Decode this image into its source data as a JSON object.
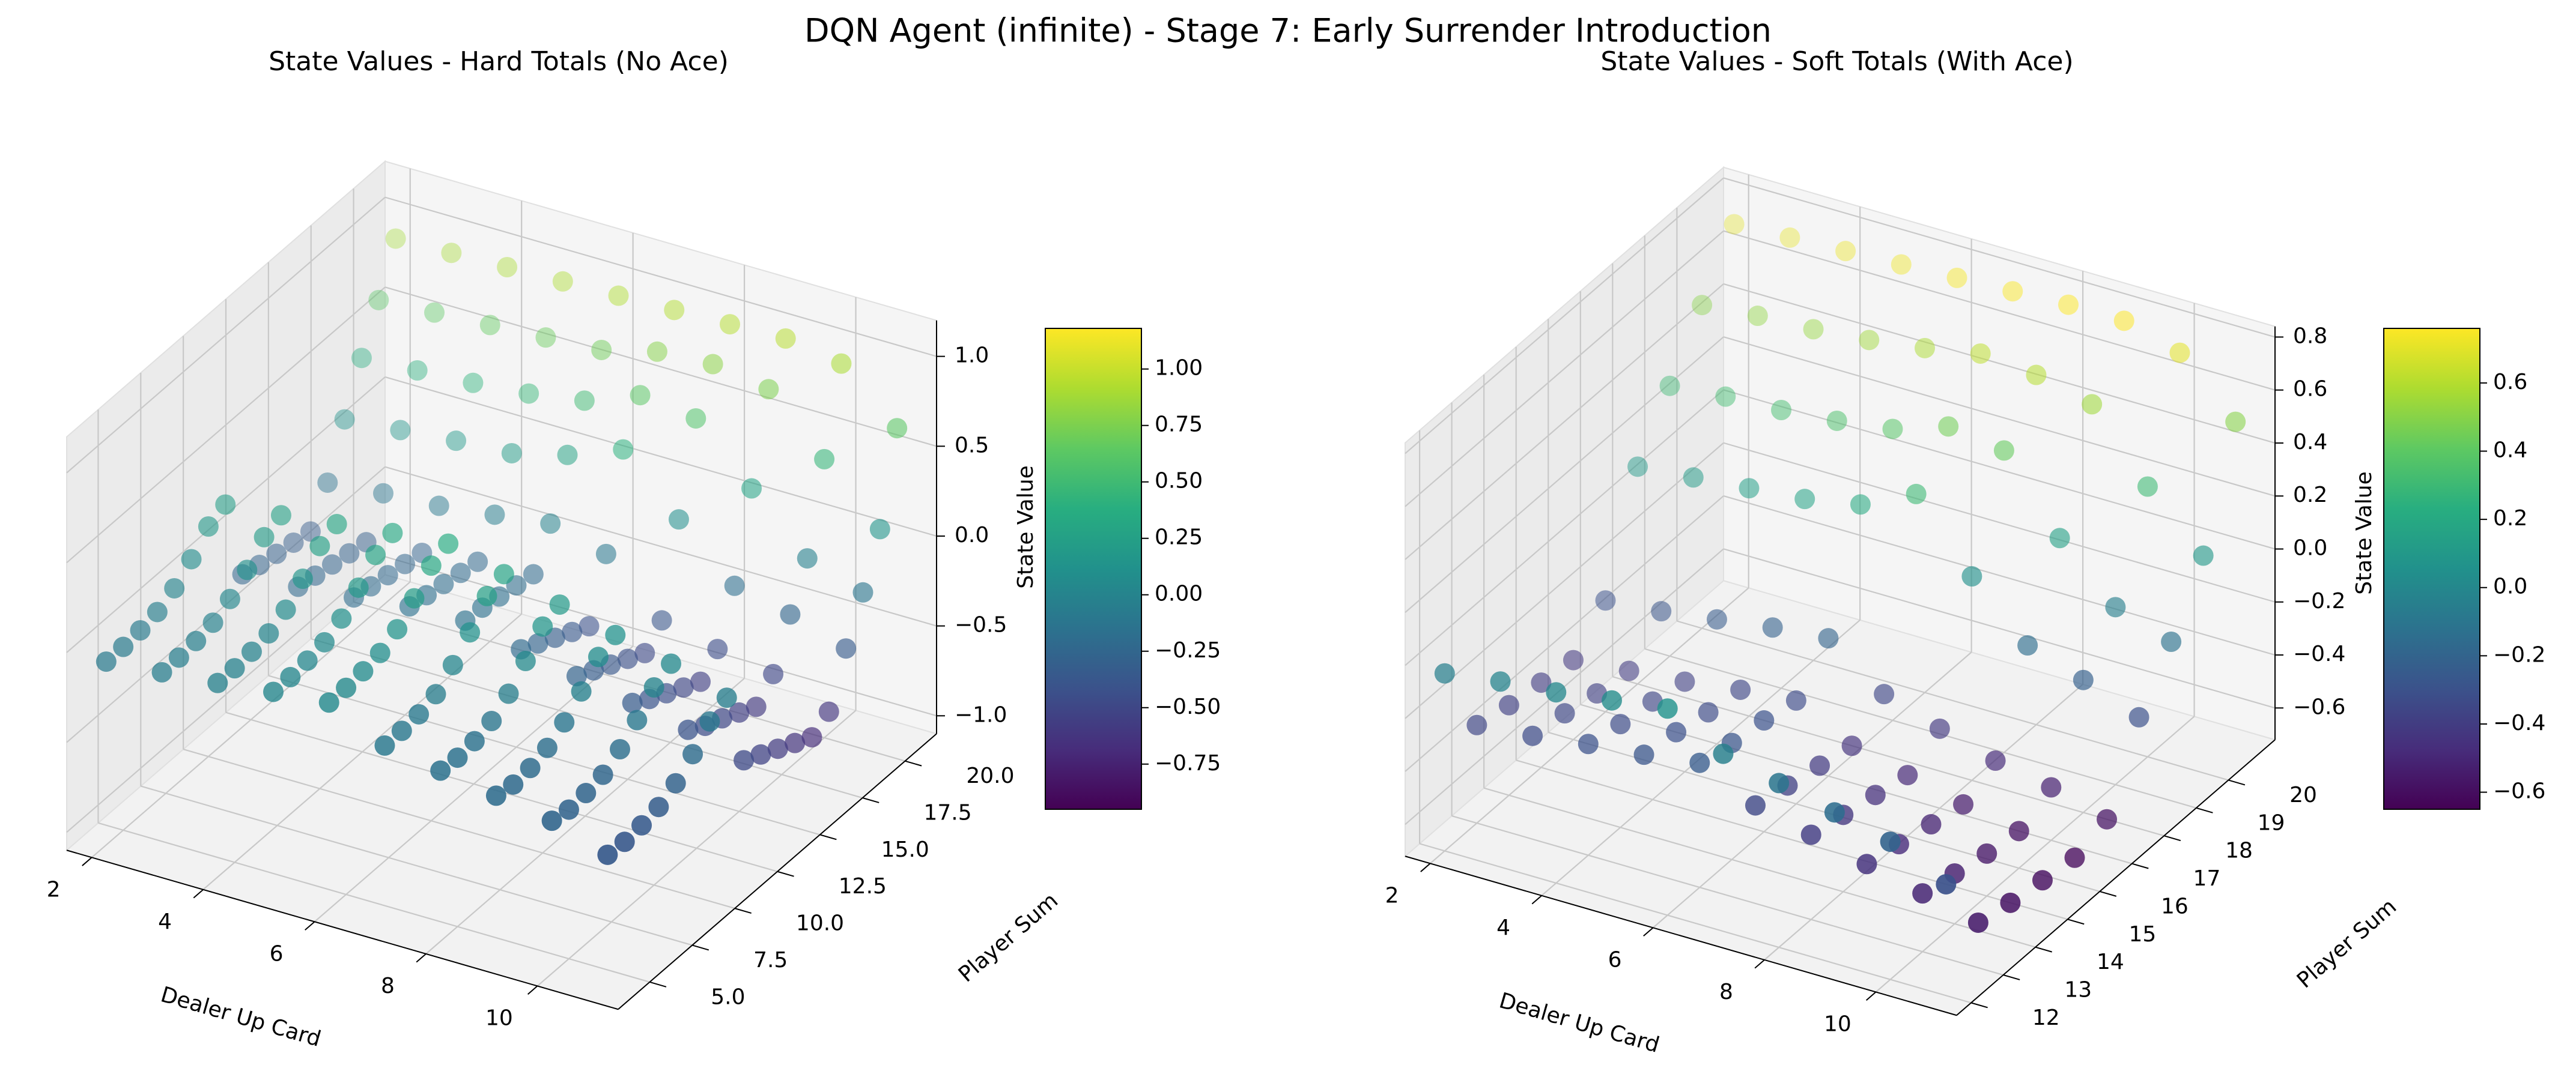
{
  "title": "DQN Agent (infinite) - Stage 7: Early Surrender Introduction",
  "chart_data": [
    {
      "type": "scatter3d",
      "title": "State Values - Hard Totals (No Ace)",
      "xlabel": "Dealer Up Card",
      "ylabel": "Player Sum",
      "zlabel": "State Value",
      "x": [
        2,
        3,
        4,
        5,
        6,
        7,
        8,
        9,
        10,
        11
      ],
      "y": [
        4,
        5,
        6,
        7,
        8,
        9,
        10,
        11,
        12,
        13,
        14,
        15,
        16,
        17,
        18,
        19,
        20,
        21
      ],
      "values": [
        [
          -0.08,
          -0.05,
          -0.02,
          0.02,
          0.05,
          -0.1,
          -0.15,
          -0.2,
          -0.25,
          -0.35
        ],
        [
          -0.08,
          -0.05,
          -0.02,
          0.02,
          0.05,
          -0.1,
          -0.16,
          -0.22,
          -0.27,
          -0.36
        ],
        [
          -0.07,
          -0.04,
          -0.01,
          0.03,
          0.06,
          -0.09,
          -0.15,
          -0.21,
          -0.26,
          -0.35
        ],
        [
          -0.05,
          -0.02,
          0.01,
          0.05,
          0.08,
          -0.06,
          -0.12,
          -0.18,
          -0.24,
          -0.33
        ],
        [
          0,
          0.03,
          0.06,
          0.1,
          0.13,
          0.02,
          -0.05,
          -0.12,
          -0.18,
          -0.28
        ],
        [
          0.08,
          0.11,
          0.15,
          0.19,
          0.22,
          0.12,
          0.05,
          -0.03,
          -0.1,
          -0.2
        ],
        [
          0.18,
          0.21,
          0.25,
          0.29,
          0.32,
          0.24,
          0.16,
          0.08,
          0,
          -0.1
        ],
        [
          0.22,
          0.25,
          0.29,
          0.33,
          0.36,
          0.28,
          0.2,
          0.12,
          0.05,
          -0.05
        ],
        [
          -0.25,
          -0.23,
          -0.2,
          -0.16,
          -0.15,
          -0.22,
          -0.28,
          -0.34,
          -0.4,
          -0.48
        ],
        [
          -0.28,
          -0.25,
          -0.22,
          -0.18,
          -0.16,
          -0.27,
          -0.33,
          -0.4,
          -0.46,
          -0.53
        ],
        [
          -0.3,
          -0.27,
          -0.24,
          -0.2,
          -0.18,
          -0.32,
          -0.38,
          -0.45,
          -0.5,
          -0.58
        ],
        [
          -0.32,
          -0.29,
          -0.26,
          -0.22,
          -0.2,
          -0.37,
          -0.43,
          -0.5,
          -0.55,
          -0.63
        ],
        [
          -0.34,
          -0.31,
          -0.28,
          -0.24,
          -0.22,
          -0.42,
          -0.48,
          -0.55,
          -0.6,
          -0.68
        ],
        [
          -0.15,
          -0.12,
          -0.1,
          -0.06,
          -0.02,
          -0.1,
          -0.38,
          -0.45,
          -0.5,
          -0.62
        ],
        [
          0.12,
          0.15,
          0.18,
          0.2,
          0.28,
          0.4,
          0.1,
          -0.18,
          -0.25,
          -0.35
        ],
        [
          0.38,
          0.4,
          0.42,
          0.45,
          0.5,
          0.62,
          0.58,
          0.28,
          -0.02,
          -0.12
        ],
        [
          0.62,
          0.64,
          0.66,
          0.68,
          0.7,
          0.78,
          0.8,
          0.75,
          0.45,
          0.15
        ],
        [
          0.88,
          0.89,
          0.9,
          0.91,
          0.92,
          0.93,
          0.94,
          0.95,
          0.9,
          0.63
        ]
      ],
      "xlim": [
        1.55,
        11.45
      ],
      "ylim": [
        3.15,
        21.85
      ],
      "zlim": [
        -1.1,
        1.2
      ],
      "xticks": [
        2,
        4,
        6,
        8,
        10
      ],
      "yticks": [
        {
          "value": 5,
          "label": "5.0"
        },
        {
          "value": 7.5,
          "label": "7.5"
        },
        {
          "value": 10,
          "label": "10.0"
        },
        {
          "value": 12.5,
          "label": "12.5"
        },
        {
          "value": 15,
          "label": "15.0"
        },
        {
          "value": 17.5,
          "label": "17.5"
        },
        {
          "value": 20,
          "label": "20.0"
        }
      ],
      "zticks": [
        {
          "value": -1,
          "label": "−1.0"
        },
        {
          "value": -0.5,
          "label": "−0.5"
        },
        {
          "value": 0,
          "label": "0.0"
        },
        {
          "value": 0.5,
          "label": "0.5"
        },
        {
          "value": 1,
          "label": "1.0"
        }
      ],
      "colorbar": {
        "lim": [
          -0.95,
          1.18
        ],
        "ticks": [
          {
            "value": -0.75,
            "label": "−0.75"
          },
          {
            "value": -0.5,
            "label": "−0.50"
          },
          {
            "value": -0.25,
            "label": "−0.25"
          },
          {
            "value": 0,
            "label": "0.00"
          },
          {
            "value": 0.25,
            "label": "0.25"
          },
          {
            "value": 0.5,
            "label": "0.50"
          },
          {
            "value": 0.75,
            "label": "0.75"
          },
          {
            "value": 1,
            "label": "1.00"
          }
        ]
      },
      "colormap": "viridis",
      "grid": true
    },
    {
      "type": "scatter3d",
      "title": "State Values - Soft Totals (With Ace)",
      "xlabel": "Dealer Up Card",
      "ylabel": "Player Sum",
      "zlabel": "State Value",
      "x": [
        2,
        3,
        4,
        5,
        6,
        7,
        8,
        9,
        10,
        11
      ],
      "y": [
        12,
        13,
        14,
        15,
        16,
        17,
        18,
        19,
        20,
        21
      ],
      "values": [
        [
          -0.05,
          -0.02,
          0,
          0.03,
          0.06,
          -0.05,
          -0.1,
          -0.15,
          -0.2,
          -0.3
        ],
        [
          -0.35,
          -0.33,
          -0.3,
          -0.28,
          -0.25,
          -0.35,
          -0.4,
          -0.45,
          -0.5,
          -0.55
        ],
        [
          -0.38,
          -0.35,
          -0.33,
          -0.3,
          -0.28,
          -0.38,
          -0.43,
          -0.48,
          -0.53,
          -0.58
        ],
        [
          -0.4,
          -0.38,
          -0.35,
          -0.33,
          -0.3,
          -0.41,
          -0.46,
          -0.51,
          -0.56,
          -0.6
        ],
        [
          -0.42,
          -0.4,
          -0.38,
          -0.35,
          -0.33,
          -0.44,
          -0.49,
          -0.54,
          -0.58,
          -0.62
        ],
        [
          -0.3,
          -0.28,
          -0.25,
          -0.22,
          -0.2,
          -0.35,
          -0.42,
          -0.48,
          -0.52,
          -0.58
        ],
        [
          0.1,
          0.12,
          0.14,
          0.16,
          0.2,
          0.3,
          0.05,
          -0.15,
          -0.22,
          -0.3
        ],
        [
          0.3,
          0.32,
          0.33,
          0.35,
          0.38,
          0.45,
          0.42,
          0.15,
          -0.05,
          -0.12
        ],
        [
          0.5,
          0.52,
          0.53,
          0.55,
          0.58,
          0.62,
          0.6,
          0.55,
          0.3,
          0.1
        ],
        [
          0.7,
          0.71,
          0.72,
          0.73,
          0.74,
          0.75,
          0.76,
          0.76,
          0.7,
          0.5
        ]
      ],
      "xlim": [
        1.55,
        11.45
      ],
      "ylim": [
        11.55,
        21.45
      ],
      "zlim": [
        -0.72,
        0.84
      ],
      "xticks": [
        2,
        4,
        6,
        8,
        10
      ],
      "yticks": [
        12,
        13,
        14,
        15,
        16,
        17,
        18,
        19,
        20
      ],
      "zticks": [
        {
          "value": -0.6,
          "label": "−0.6"
        },
        {
          "value": -0.4,
          "label": "−0.4"
        },
        {
          "value": -0.2,
          "label": "−0.2"
        },
        {
          "value": 0,
          "label": "0.0"
        },
        {
          "value": 0.2,
          "label": "0.2"
        },
        {
          "value": 0.4,
          "label": "0.4"
        },
        {
          "value": 0.6,
          "label": "0.6"
        },
        {
          "value": 0.8,
          "label": "0.8"
        }
      ],
      "colorbar": {
        "lim": [
          -0.65,
          0.76
        ],
        "ticks": [
          {
            "value": -0.6,
            "label": "−0.6"
          },
          {
            "value": -0.4,
            "label": "−0.4"
          },
          {
            "value": -0.2,
            "label": "−0.2"
          },
          {
            "value": 0,
            "label": "0.0"
          },
          {
            "value": 0.2,
            "label": "0.2"
          },
          {
            "value": 0.4,
            "label": "0.4"
          },
          {
            "value": 0.6,
            "label": "0.6"
          }
        ]
      },
      "colormap": "viridis",
      "grid": true
    }
  ]
}
